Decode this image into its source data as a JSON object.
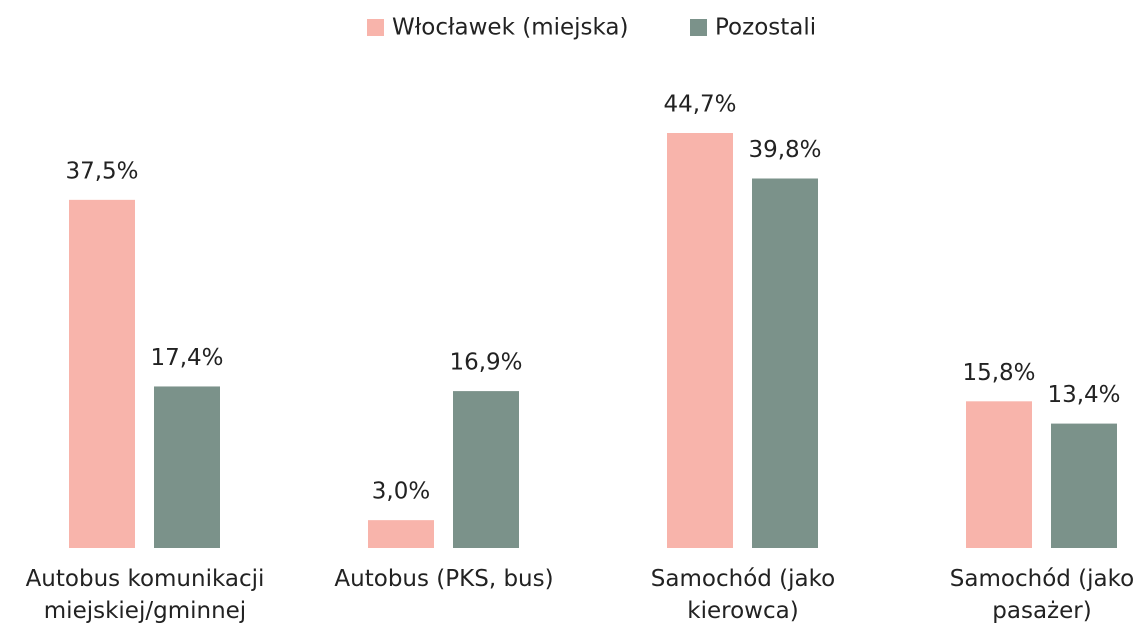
{
  "chart_data": {
    "type": "bar",
    "categories": [
      "Autobus komunikacji miejskiej/gminnej",
      "Autobus (PKS, bus)",
      "Samochód (jako kierowca)",
      "Samochód (jako pasażer)"
    ],
    "series": [
      {
        "name": "Włocławek (miejska)",
        "color": "#f8b4ab",
        "values": [
          37.5,
          3.0,
          44.7,
          15.8
        ],
        "value_labels": [
          "37,5%",
          "3,0%",
          "44,7%",
          "15,8%"
        ]
      },
      {
        "name": "Pozostali",
        "color": "#7b928a",
        "values": [
          17.4,
          16.9,
          39.8,
          13.4
        ],
        "value_labels": [
          "17,4%",
          "16,9%",
          "39,8%",
          "13,4%"
        ]
      }
    ],
    "legend": "top"
  }
}
